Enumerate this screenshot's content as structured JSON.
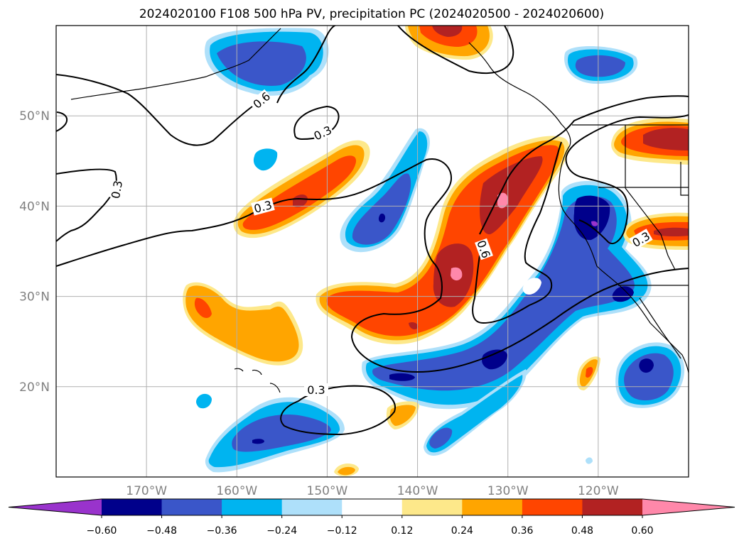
{
  "chart_data": {
    "type": "heatmap",
    "title": "2024020100 F108 500 hPa PV, precipitation PC (2024020500 - 2024020600)",
    "map_extent": {
      "lon_min": -180,
      "lon_max": -110,
      "lat_min": 10,
      "lat_max": 60
    },
    "grid": true,
    "x_ticks": [
      {
        "lon": -170,
        "label": "170°W"
      },
      {
        "lon": -160,
        "label": "160°W"
      },
      {
        "lon": -150,
        "label": "150°W"
      },
      {
        "lon": -140,
        "label": "140°W"
      },
      {
        "lon": -130,
        "label": "130°W"
      },
      {
        "lon": -120,
        "label": "120°W"
      }
    ],
    "y_ticks": [
      {
        "lat": 20,
        "label": "20°N"
      },
      {
        "lat": 30,
        "label": "30°N"
      },
      {
        "lat": 40,
        "label": "40°N"
      },
      {
        "lat": 50,
        "label": "50°N"
      }
    ],
    "colorbar": {
      "levels": [
        -0.6,
        -0.48,
        -0.36,
        -0.24,
        -0.12,
        0.12,
        0.24,
        0.36,
        0.48,
        0.6
      ],
      "tick_labels": [
        "−0.60",
        "−0.48",
        "−0.36",
        "−0.24",
        "−0.12",
        "0.12",
        "0.24",
        "0.36",
        "0.48",
        "0.60"
      ],
      "colors": [
        "#9933cc",
        "#00008b",
        "#3a56c9",
        "#00b4f0",
        "#aee0fa",
        "#ffffff",
        "#fde88a",
        "#ffa500",
        "#ff4500",
        "#b22222",
        "#ff88aa"
      ],
      "extend": "both"
    },
    "contour_labels": [
      "0.3",
      "0.6"
    ],
    "regions": [
      {
        "level": "-0.36",
        "lon": -155,
        "lat": 56.5,
        "w": 12,
        "h": 5
      },
      {
        "level": "-0.36",
        "lon": -120,
        "lat": 56,
        "w": 6,
        "h": 3
      },
      {
        "level": "-0.36",
        "lon": -145.5,
        "lat": 39,
        "w": 5,
        "h": 11
      },
      {
        "level": "-0.48",
        "lon": -120,
        "lat": 38.5,
        "w": 6,
        "h": 7
      },
      {
        "level": "-0.36",
        "lon": -129,
        "lat": 25.5,
        "w": 20,
        "h": 5
      },
      {
        "level": "-0.36",
        "lon": -154,
        "lat": 15,
        "w": 10,
        "h": 3.5
      },
      {
        "level": "-0.36",
        "lon": -114.5,
        "lat": 21.5,
        "w": 6,
        "h": 6
      },
      {
        "level": "0.36",
        "lon": -153,
        "lat": 41.5,
        "w": 11,
        "h": 5
      },
      {
        "level": "0.48",
        "lon": -134,
        "lat": 37,
        "w": 6,
        "h": 13
      },
      {
        "level": "0.36",
        "lon": -141,
        "lat": 28,
        "w": 16,
        "h": 6
      },
      {
        "level": "0.24",
        "lon": -159,
        "lat": 27,
        "w": 10,
        "h": 7
      },
      {
        "level": "0.48",
        "lon": -114,
        "lat": 47.5,
        "w": 8,
        "h": 3
      },
      {
        "level": "0.36",
        "lon": -113,
        "lat": 37,
        "w": 6,
        "h": 3
      },
      {
        "level": "0.36",
        "lon": -136.5,
        "lat": 58.5,
        "w": 7,
        "h": 3
      }
    ]
  }
}
